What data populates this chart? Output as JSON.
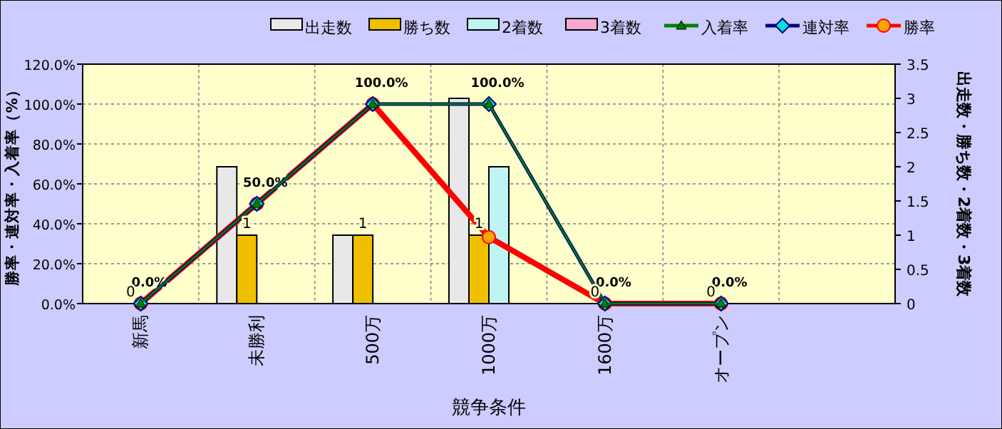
{
  "chart_data": {
    "type": "bar",
    "xlabel": "競争条件",
    "ylabel": "勝率・連対率・入着率（%）",
    "y2label": "出走数・勝ち数・2着数・3着数",
    "categories": [
      "新馬",
      "未勝利",
      "500万",
      "1000万",
      "1600万",
      "オープン",
      null
    ],
    "series": [
      {
        "name": "出走数",
        "color": "#e8e8e8",
        "axis": "y2",
        "values": [
          0,
          2,
          1,
          3,
          0,
          0,
          null
        ]
      },
      {
        "name": "勝ち数",
        "color": "#f0c000",
        "axis": "y2",
        "values": [
          0,
          1,
          1,
          1,
          0,
          0,
          null
        ],
        "value_labels": [
          "0",
          "1",
          "1",
          "1",
          "0",
          "0",
          null
        ]
      },
      {
        "name": "2着数",
        "color": "#c0f4f4",
        "axis": "y2",
        "values": [
          0,
          0,
          0,
          2,
          0,
          0,
          null
        ]
      },
      {
        "name": "3着数",
        "color": "#f4a8d0",
        "axis": "y2",
        "values": [
          0,
          0,
          0,
          0,
          0,
          0,
          null
        ]
      },
      {
        "name": "入着率",
        "type": "line",
        "color": "#008000",
        "marker": "triangle",
        "values": [
          0,
          50,
          100,
          100,
          0,
          0,
          null
        ]
      },
      {
        "name": "連対率",
        "type": "line",
        "color": "#000080",
        "marker": "diamond",
        "values": [
          0,
          50,
          100,
          100,
          0,
          0,
          null
        ],
        "value_labels": [
          null,
          null,
          null,
          "100.0%",
          null,
          null,
          null
        ]
      },
      {
        "name": "勝率",
        "type": "line",
        "color": "#ff0000",
        "marker": "circle",
        "values": [
          0,
          50,
          100,
          33.3,
          0,
          0,
          null
        ],
        "value_labels": [
          "0.0%",
          "50.0%",
          "100.0%",
          null,
          "0.0%",
          "0.0%",
          null
        ]
      }
    ],
    "ylim": [
      0,
      120
    ],
    "yticks": [
      {
        "value": 0,
        "label": "0.0%"
      },
      {
        "value": 20,
        "label": "20.0%"
      },
      {
        "value": 40,
        "label": "40.0%"
      },
      {
        "value": 60,
        "label": "60.0%"
      },
      {
        "value": 80,
        "label": "80.0%"
      },
      {
        "value": 100,
        "label": "100.0%"
      },
      {
        "value": 120,
        "label": "120.0%"
      }
    ],
    "y2lim": [
      0,
      3.5
    ],
    "y2ticks": [
      0,
      0.5,
      1,
      1.5,
      2,
      2.5,
      3,
      3.5
    ],
    "grid": true,
    "legend": "top",
    "line_style": "solid"
  }
}
